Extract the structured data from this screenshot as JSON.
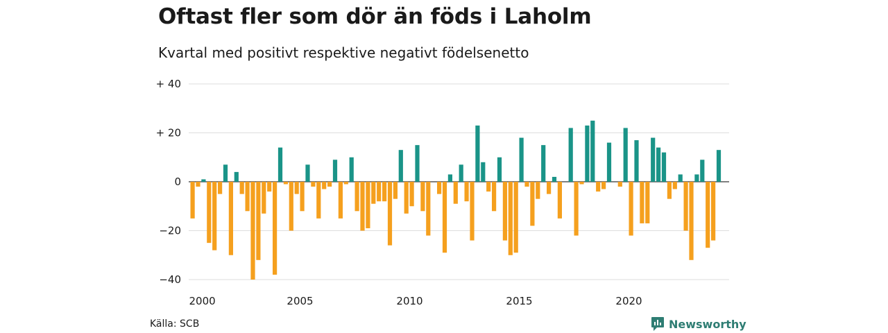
{
  "title": "Oftast fler som dör än föds i Laholm",
  "subtitle": "Kvartal med positivt respektive negativt födelsenetto",
  "source": "Källa: SCB",
  "logo_text": "Newsworthy",
  "colors": {
    "positive": "#1a9488",
    "negative": "#f5a01e",
    "grid": "#dddddd",
    "zero_line": "#333333",
    "logo": "#2e7d73"
  },
  "chart_data": {
    "type": "bar",
    "title": "Oftast fler som dör än föds i Laholm",
    "subtitle": "Kvartal med positivt respektive negativt födelsenetto",
    "xlabel": "",
    "ylabel": "",
    "ylim": [
      -40,
      40
    ],
    "y_ticks": [
      {
        "value": 40,
        "label": "+ 40"
      },
      {
        "value": 20,
        "label": "+ 20"
      },
      {
        "value": 0,
        "label": "0"
      },
      {
        "value": -20,
        "label": "−20"
      },
      {
        "value": -40,
        "label": "−40"
      }
    ],
    "x_ticks": [
      2000,
      2005,
      2010,
      2015,
      2020
    ],
    "grid": true,
    "start_year": 2000,
    "quarters_per_year": 4,
    "values": [
      -15,
      -2,
      1,
      -25,
      -28,
      -5,
      7,
      -30,
      4,
      -5,
      -12,
      -40,
      -32,
      -13,
      -4,
      -38,
      14,
      -1,
      -20,
      -5,
      -12,
      7,
      -2,
      -15,
      -3,
      -2,
      9,
      -15,
      -1,
      10,
      -12,
      -20,
      -19,
      -9,
      -8,
      -8,
      -26,
      -7,
      13,
      -13,
      -10,
      15,
      -12,
      -22,
      0,
      -5,
      -29,
      3,
      -9,
      7,
      -8,
      -24,
      23,
      8,
      -4,
      -12,
      10,
      -24,
      -30,
      -29,
      18,
      -2,
      -18,
      -7,
      15,
      -5,
      2,
      -15,
      0,
      22,
      -22,
      -1,
      23,
      25,
      -4,
      -3,
      16,
      0,
      -2,
      22,
      -22,
      17,
      -17,
      -17,
      18,
      14,
      12,
      -7,
      -3,
      3,
      -20,
      -32,
      3,
      9,
      -27,
      -24,
      13
    ]
  }
}
